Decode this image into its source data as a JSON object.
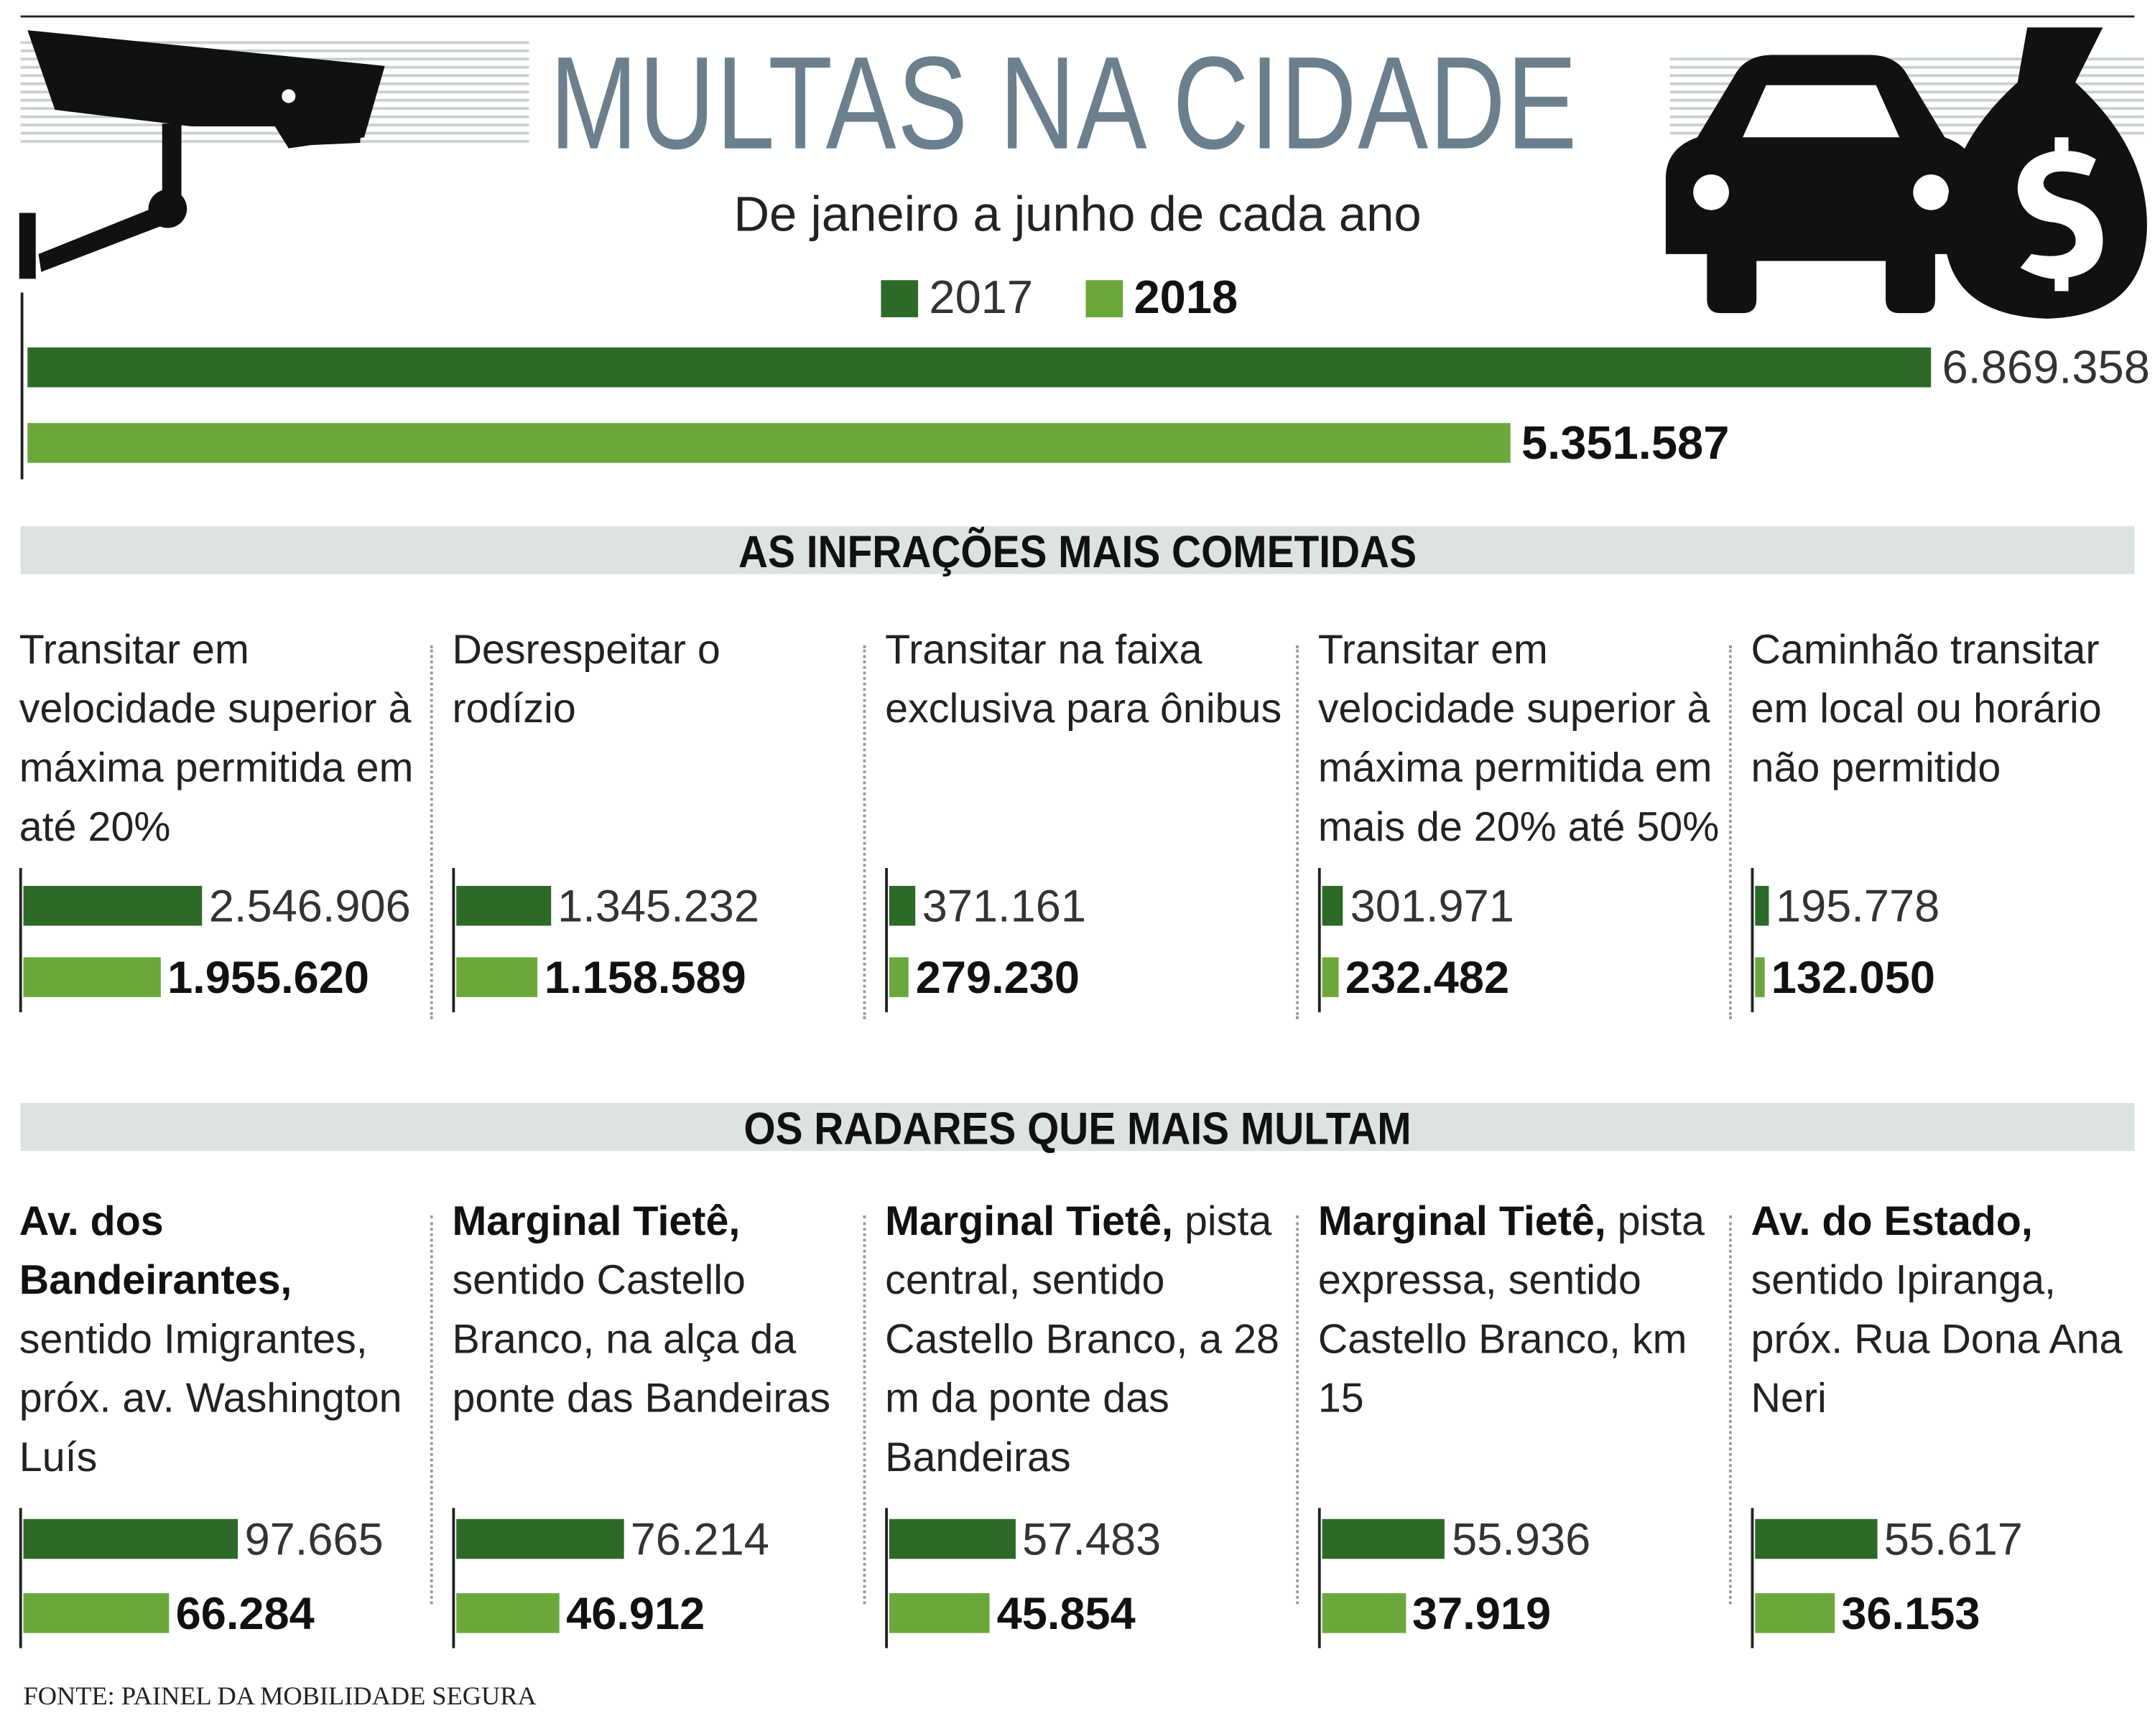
{
  "title": "MULTAS NA CIDADE",
  "subtitle": "De janeiro a junho de cada ano",
  "source": "FONTE: PAINEL DA MOBILIDADE SEGURA",
  "chart_data": [
    {
      "type": "bar",
      "orientation": "horizontal",
      "categories": [
        null
      ],
      "legend": "top",
      "series": [
        {
          "name": "2017",
          "color": "#2d6a27",
          "values": [
            6869358
          ],
          "value_labels": [
            "6.869.358"
          ]
        },
        {
          "name": "2018",
          "color": "#6aa83c",
          "values": [
            5351587
          ],
          "value_labels": [
            "5.351.587"
          ]
        }
      ]
    },
    {
      "type": "bar",
      "orientation": "horizontal",
      "title": "AS INFRAÇÕES MAIS COMETIDAS",
      "categories": [
        "Transitar em velocidade superior à máxima permitida em até 20%",
        "Desrespeitar o rodízio",
        "Transitar na faixa exclusiva para ônibus",
        "Transitar em velocidade superior à máxima permitida em mais de 20% até 50%",
        "Caminhão transitar em local ou horário não permitido"
      ],
      "series": [
        {
          "color": "#2d6a27",
          "values": [
            2546906,
            1345232,
            371161,
            301971,
            195778
          ],
          "value_labels": [
            "2.546.906",
            "1.345.232",
            "371.161",
            "301.971",
            "195.778"
          ]
        },
        {
          "color": "#6aa83c",
          "values": [
            1955620,
            1158589,
            279230,
            232482,
            132050
          ],
          "value_labels": [
            "1.955.620",
            "1.158.589",
            "279.230",
            "232.482",
            "132.050"
          ]
        }
      ]
    },
    {
      "type": "bar",
      "orientation": "horizontal",
      "title": "OS RADARES QUE MAIS MULTAM",
      "categories": [
        "Av. dos Bandeirantes,",
        "Marginal Tietê,",
        "Marginal Tietê,",
        "Marginal Tietê,",
        "Av. do Estado,"
      ],
      "category_details": [
        "sentido Imigrantes, próx. av. Washington Luís",
        "sentido Castello Branco, na alça da ponte das Bandeiras",
        "pista central, sentido Castello Branco, a 28 m da ponte das Bandeiras",
        "pista expressa, sentido Castello Branco, km 15",
        "sentido Ipiranga, próx. Rua Dona Ana Neri"
      ],
      "series": [
        {
          "color": "#2d6a27",
          "values": [
            97665,
            76214,
            57483,
            55936,
            55617
          ],
          "value_labels": [
            "97.665",
            "76.214",
            "57.483",
            "55.936",
            "55.617"
          ]
        },
        {
          "color": "#6aa83c",
          "values": [
            66284,
            46912,
            45854,
            37919,
            36153
          ],
          "value_labels": [
            "66.284",
            "46.912",
            "45.854",
            "37.919",
            "36.153"
          ]
        }
      ]
    }
  ]
}
